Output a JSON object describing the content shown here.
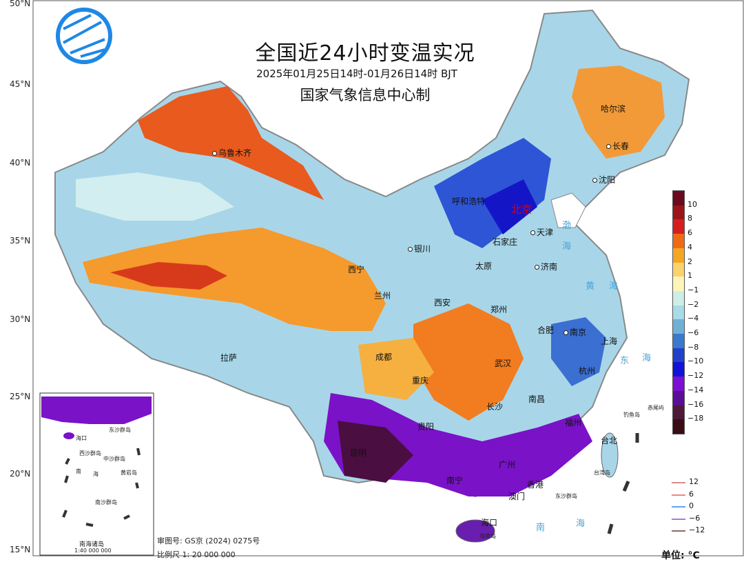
{
  "title": "全国近24小时变温实况",
  "subtitle": "2025年01月25日14时-01月26日14时  BJT",
  "issuer": "国家气象信息中心制",
  "latitude_labels": [
    "50°N",
    "45°N",
    "40°N",
    "35°N",
    "30°N",
    "25°N",
    "20°N",
    "15°N"
  ],
  "cities": [
    "乌鲁木齐",
    "哈尔滨",
    "长春",
    "沈阳",
    "呼和浩特",
    "北京",
    "天津",
    "银川",
    "石家庄",
    "太原",
    "济南",
    "西宁",
    "兰州",
    "西安",
    "郑州",
    "合肥",
    "南京",
    "上海",
    "成都",
    "武汉",
    "杭州",
    "拉萨",
    "重庆",
    "南昌",
    "长沙",
    "福州",
    "贵阳",
    "台北",
    "昆明",
    "南宁",
    "广州",
    "香港",
    "澳门",
    "海口"
  ],
  "seas": [
    "渤",
    "海",
    "黄",
    "海",
    "东",
    "海",
    "南",
    "海"
  ],
  "islands": [
    "钓鱼岛",
    "赤尾屿",
    "台湾岛",
    "东沙群岛",
    "海南岛"
  ],
  "inset": {
    "title": "南海诸岛",
    "scale": "1:40 000 000",
    "labels": [
      "海口",
      "西沙群岛",
      "中沙群岛",
      "南",
      "海",
      "黄岩岛",
      "东沙群岛",
      "南沙群岛"
    ]
  },
  "colorbar": {
    "colors": [
      "#6b0a1f",
      "#9c1418",
      "#d71e1e",
      "#f06a14",
      "#f5a623",
      "#fbd36a",
      "#fff5b8",
      "#cdeee7",
      "#a8dbe9",
      "#6fb0d6",
      "#3b78cf",
      "#2340c8",
      "#1212d8",
      "#7d0fd4",
      "#5a0e96",
      "#4e1a3a",
      "#3a0d14"
    ],
    "labels": [
      "10",
      "8",
      "6",
      "4",
      "2",
      "1",
      "−1",
      "−2",
      "−4",
      "−6",
      "−8",
      "−10",
      "−12",
      "−14",
      "−16",
      "−18"
    ]
  },
  "line_legend": [
    {
      "label": "12",
      "color": "#d98a8a"
    },
    {
      "label": "6",
      "color": "#ef8787"
    },
    {
      "label": "0",
      "color": "#5ea3ff"
    },
    {
      "label": "−6",
      "color": "#a97ad7"
    },
    {
      "label": "−12",
      "color": "#8b6b6b"
    }
  ],
  "approval": "审图号: GS京 (2024) 0275号",
  "scale": "比例尺 1: 20 000 000",
  "unit": "单位: °C"
}
